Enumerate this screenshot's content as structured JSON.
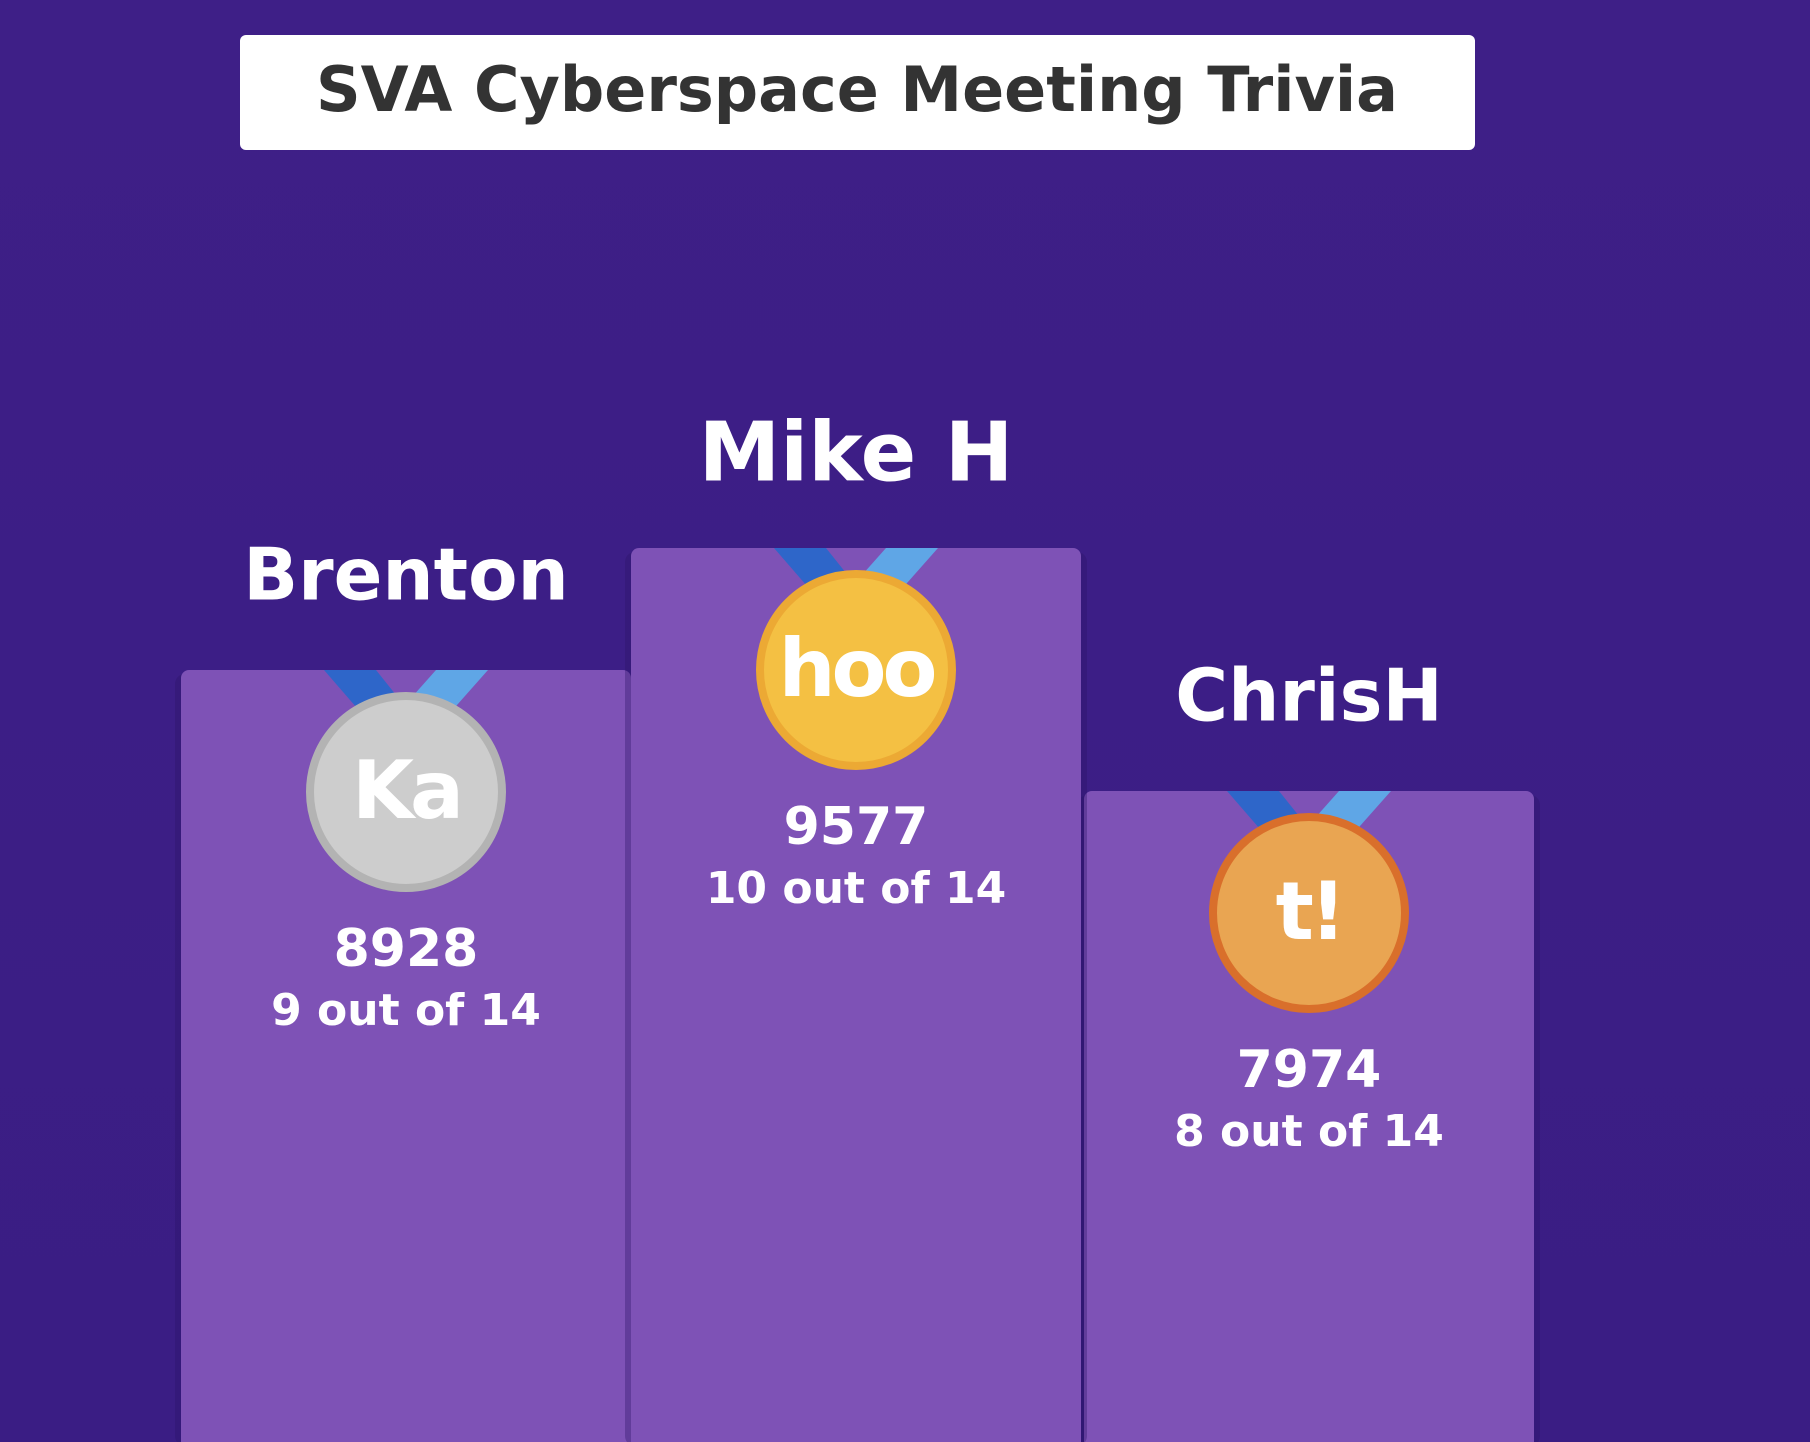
{
  "header": {
    "title": "SVA Cyberspace Meeting Trivia"
  },
  "podium": [
    {
      "name": "Brenton",
      "medal_text": "Ka",
      "score": 8928,
      "correct": "9 out of 14",
      "medal_color": "#cdcdcd",
      "medal_border": "#b3b3b3"
    },
    {
      "name": "Mike H",
      "medal_text": "hoo",
      "score": 9577,
      "correct": "10 out of 14",
      "medal_color": "#f4c043",
      "medal_border": "#eca934"
    },
    {
      "name": "ChrisH",
      "medal_text": "t!",
      "score": 7974,
      "correct": "8 out of 14",
      "medal_color": "#e9a552",
      "medal_border": "#d96f2b"
    }
  ]
}
